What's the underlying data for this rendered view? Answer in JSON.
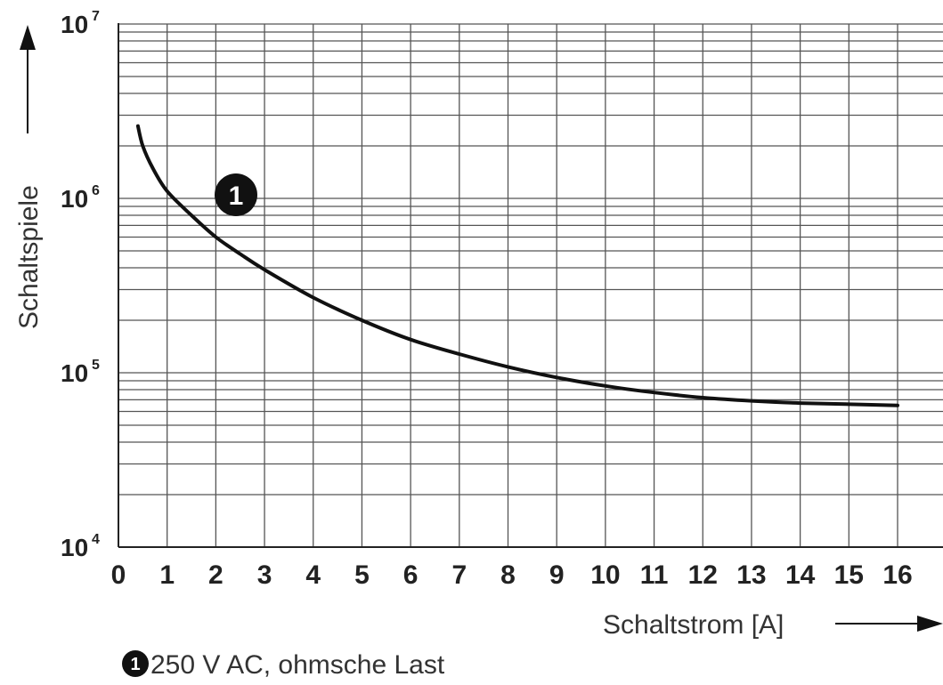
{
  "chart_data": {
    "type": "line",
    "xlabel": "Schaltstrom [A]",
    "ylabel": "Schaltspiele",
    "xlim": [
      0,
      16
    ],
    "ylim": [
      10000,
      10000000
    ],
    "yscale": "log",
    "grid": true,
    "x_ticks": [
      "0",
      "1",
      "2",
      "3",
      "4",
      "5",
      "6",
      "7",
      "8",
      "9",
      "10",
      "11",
      "12",
      "13",
      "14",
      "15",
      "16"
    ],
    "y_ticks": [
      {
        "base": "10",
        "exp": "4",
        "value": 10000
      },
      {
        "base": "10",
        "exp": "5",
        "value": 100000
      },
      {
        "base": "10",
        "exp": "6",
        "value": 1000000
      },
      {
        "base": "10",
        "exp": "7",
        "value": 10000000
      }
    ],
    "series": [
      {
        "marker": "1",
        "x": [
          0.4,
          0.5,
          0.7,
          1,
          1.5,
          2,
          2.5,
          3,
          4,
          5,
          6,
          7,
          8,
          9,
          10,
          11,
          12,
          13,
          14,
          15,
          16
        ],
        "y": [
          2600000,
          2000000,
          1500000,
          1100000,
          800000,
          600000,
          480000,
          390000,
          270000,
          200000,
          155000,
          128000,
          108000,
          94000,
          84000,
          77000,
          72000,
          69000,
          67000,
          66000,
          65000
        ]
      }
    ],
    "legend": {
      "marker": "1",
      "text": "250 V AC, ohmsche Last"
    }
  }
}
